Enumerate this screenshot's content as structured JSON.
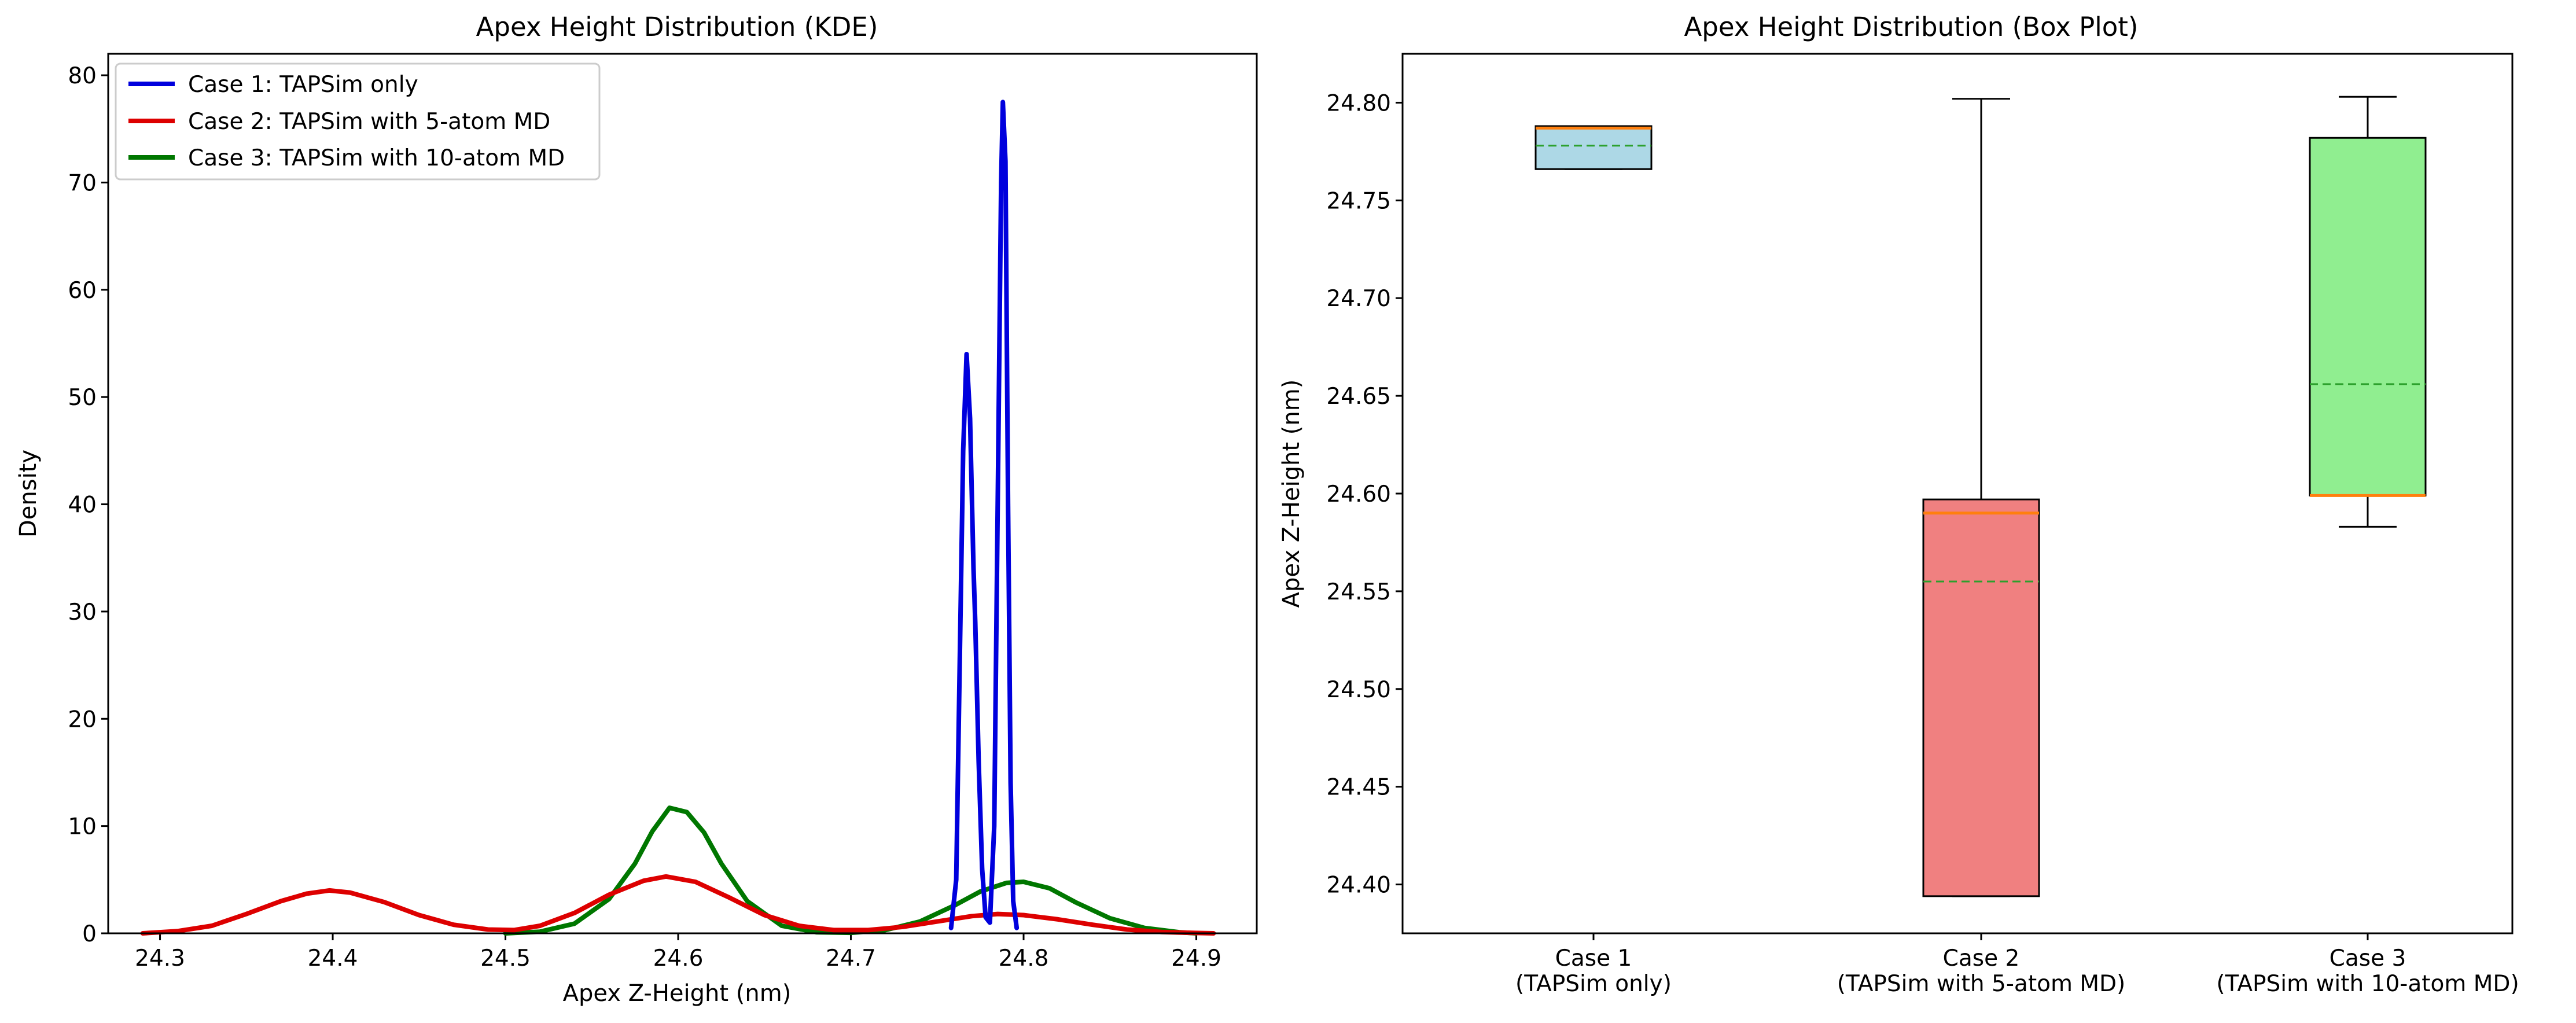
{
  "chart_data": [
    {
      "type": "line",
      "title": "Apex Height Distribution (KDE)",
      "xlabel": "Apex Z-Height (nm)",
      "ylabel": "Density",
      "xlim": [
        24.27,
        24.935
      ],
      "ylim": [
        0,
        82
      ],
      "xticks": [
        "24.3",
        "24.4",
        "24.5",
        "24.6",
        "24.7",
        "24.8",
        "24.9"
      ],
      "yticks": [
        "0",
        "10",
        "20",
        "30",
        "40",
        "50",
        "60",
        "70",
        "80"
      ],
      "legend_position": "upper-left",
      "series": [
        {
          "name": "Case 1: TAPSim only",
          "color": "#0000dd",
          "points": [
            [
              24.758,
              0.5
            ],
            [
              24.761,
              5
            ],
            [
              24.763,
              25
            ],
            [
              24.765,
              45
            ],
            [
              24.767,
              54
            ],
            [
              24.769,
              48
            ],
            [
              24.771,
              34
            ],
            [
              24.772,
              29
            ],
            [
              24.774,
              16
            ],
            [
              24.776,
              6
            ],
            [
              24.778,
              1.5
            ],
            [
              24.7805,
              1
            ],
            [
              24.783,
              10
            ],
            [
              24.785,
              40
            ],
            [
              24.787,
              70
            ],
            [
              24.788,
              77.5
            ],
            [
              24.7895,
              72
            ],
            [
              24.791,
              40
            ],
            [
              24.7925,
              14
            ],
            [
              24.794,
              3
            ],
            [
              24.796,
              0.5
            ]
          ]
        },
        {
          "name": "Case 2: TAPSim with 5-atom MD",
          "color": "#dd0000",
          "points": [
            [
              24.29,
              0
            ],
            [
              24.31,
              0.2
            ],
            [
              24.33,
              0.7
            ],
            [
              24.35,
              1.8
            ],
            [
              24.37,
              3.0
            ],
            [
              24.385,
              3.7
            ],
            [
              24.398,
              4.0
            ],
            [
              24.41,
              3.8
            ],
            [
              24.43,
              2.9
            ],
            [
              24.45,
              1.7
            ],
            [
              24.47,
              0.8
            ],
            [
              24.49,
              0.35
            ],
            [
              24.505,
              0.3
            ],
            [
              24.52,
              0.7
            ],
            [
              24.54,
              1.9
            ],
            [
              24.56,
              3.6
            ],
            [
              24.58,
              4.9
            ],
            [
              24.593,
              5.3
            ],
            [
              24.61,
              4.8
            ],
            [
              24.63,
              3.3
            ],
            [
              24.65,
              1.7
            ],
            [
              24.67,
              0.7
            ],
            [
              24.69,
              0.3
            ],
            [
              24.71,
              0.3
            ],
            [
              24.73,
              0.6
            ],
            [
              24.75,
              1.1
            ],
            [
              24.77,
              1.6
            ],
            [
              24.785,
              1.8
            ],
            [
              24.8,
              1.7
            ],
            [
              24.82,
              1.3
            ],
            [
              24.84,
              0.8
            ],
            [
              24.86,
              0.35
            ],
            [
              24.88,
              0.12
            ],
            [
              24.9,
              0.03
            ],
            [
              24.91,
              0
            ]
          ]
        },
        {
          "name": "Case 3: TAPSim with 10-atom MD",
          "color": "#007700",
          "points": [
            [
              24.5,
              0
            ],
            [
              24.52,
              0.15
            ],
            [
              24.54,
              0.9
            ],
            [
              24.56,
              3.2
            ],
            [
              24.575,
              6.5
            ],
            [
              24.585,
              9.5
            ],
            [
              24.595,
              11.7
            ],
            [
              24.605,
              11.3
            ],
            [
              24.615,
              9.4
            ],
            [
              24.625,
              6.5
            ],
            [
              24.64,
              3.0
            ],
            [
              24.66,
              0.7
            ],
            [
              24.68,
              0.1
            ],
            [
              24.7,
              0.05
            ],
            [
              24.72,
              0.3
            ],
            [
              24.74,
              1.1
            ],
            [
              24.76,
              2.6
            ],
            [
              24.775,
              3.9
            ],
            [
              24.79,
              4.7
            ],
            [
              24.8,
              4.8
            ],
            [
              24.815,
              4.2
            ],
            [
              24.83,
              2.9
            ],
            [
              24.85,
              1.4
            ],
            [
              24.87,
              0.5
            ],
            [
              24.89,
              0.1
            ],
            [
              24.9,
              0
            ]
          ]
        }
      ]
    },
    {
      "type": "box",
      "title": "Apex Height Distribution (Box Plot)",
      "xlabel": "",
      "ylabel": "Apex Z-Height (nm)",
      "ylim": [
        24.375,
        24.825
      ],
      "yticks": [
        "24.40",
        "24.45",
        "24.50",
        "24.55",
        "24.60",
        "24.65",
        "24.70",
        "24.75",
        "24.80"
      ],
      "median_color": "#ff7f0e",
      "mean_color": "#2ca02c",
      "boxes": [
        {
          "line1": "Case 1",
          "line2": "(TAPSim only)",
          "color": "#add8e6",
          "whisker_low": 24.766,
          "q1": 24.766,
          "median": 24.787,
          "q3": 24.788,
          "whisker_high": 24.788,
          "mean": 24.778
        },
        {
          "line1": "Case 2",
          "line2": "(TAPSim with 5-atom MD)",
          "color": "#f08080",
          "whisker_low": 24.394,
          "q1": 24.394,
          "median": 24.59,
          "q3": 24.597,
          "whisker_high": 24.802,
          "mean": 24.555
        },
        {
          "line1": "Case 3",
          "line2": "(TAPSim with 10-atom MD)",
          "color": "#90ee90",
          "whisker_low": 24.583,
          "q1": 24.599,
          "median": 24.599,
          "q3": 24.782,
          "whisker_high": 24.803,
          "mean": 24.656
        }
      ]
    }
  ]
}
